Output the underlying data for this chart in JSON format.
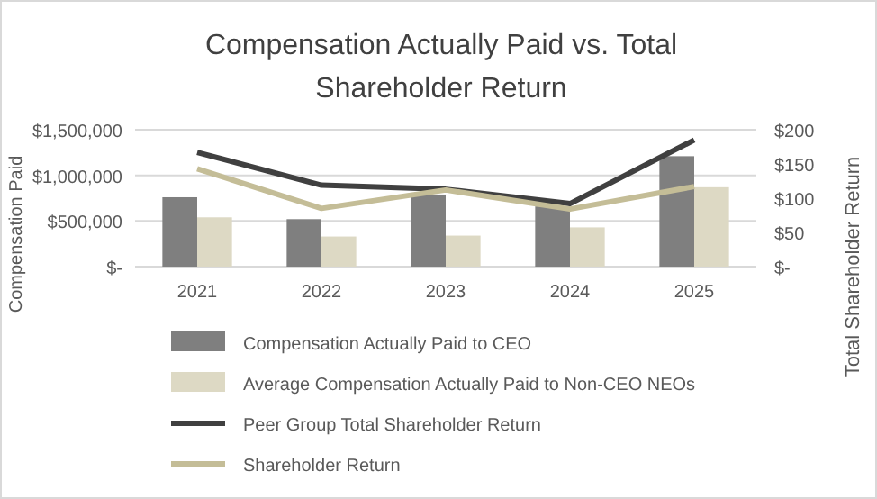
{
  "chart_data": {
    "type": "bar",
    "title": "Compensation Actually Paid vs. Total Shareholder Return",
    "ylabel": "Compensation Paid",
    "y2label": "Total Shareholder Return",
    "categories": [
      "2021",
      "2022",
      "2023",
      "2024",
      "2025"
    ],
    "series": [
      {
        "name": "Compensation Actually Paid to CEO",
        "color": "#7f7f7f",
        "values": [
          760000,
          520000,
          790000,
          660000,
          1210000
        ]
      },
      {
        "name": "Average Compensation Actually Paid to Non-CEO NEOs",
        "color": "#ddd9c4",
        "values": [
          540000,
          330000,
          340000,
          430000,
          870000
        ]
      },
      {
        "name": "Peer Group Total Shareholder Return",
        "type": "line",
        "axis": "y2",
        "color": "#404040",
        "values": [
          167,
          119,
          113,
          92,
          185
        ]
      },
      {
        "name": "Shareholder Return",
        "type": "line",
        "axis": "y2",
        "color": "#c4bd97",
        "values": [
          143,
          85,
          112,
          84,
          117
        ]
      }
    ],
    "ylim": [
      0,
      1500000
    ],
    "yticks": [
      {
        "value": 0,
        "label": "$-"
      },
      {
        "value": 500000,
        "label": "$500,000"
      },
      {
        "value": 1000000,
        "label": "$1,000,000"
      },
      {
        "value": 1500000,
        "label": "$1,500,000"
      }
    ],
    "y2lim": [
      0,
      200
    ],
    "y2ticks": [
      {
        "value": 0,
        "label": "$-"
      },
      {
        "value": 50,
        "label": "$50"
      },
      {
        "value": 100,
        "label": "$100"
      },
      {
        "value": 150,
        "label": "$150"
      },
      {
        "value": 200,
        "label": "$200"
      }
    ],
    "grid": "y",
    "legend": "bottom"
  }
}
